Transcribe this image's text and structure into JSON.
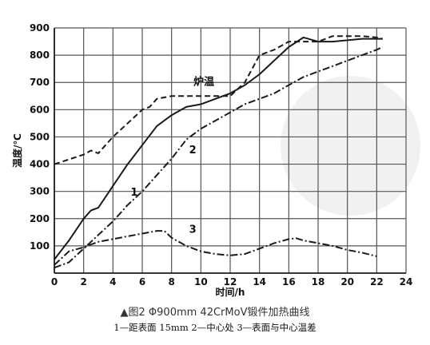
{
  "chart_data": {
    "type": "line",
    "xlabel": "时间/h",
    "ylabel": "温度/℃",
    "xlim": [
      0,
      24
    ],
    "ylim": [
      0,
      900
    ],
    "x_ticks": [
      0,
      2,
      4,
      6,
      8,
      10,
      12,
      14,
      16,
      18,
      20,
      22,
      24
    ],
    "y_ticks": [
      100,
      200,
      300,
      400,
      500,
      600,
      700,
      800,
      900
    ],
    "grid": true,
    "series": [
      {
        "name": "炉温",
        "style": "dashed",
        "x": [
          0,
          2,
          2.5,
          3,
          4,
          5,
          6,
          6.5,
          7,
          8,
          10,
          12,
          13,
          14,
          15,
          16,
          17,
          18,
          19,
          20,
          21,
          22,
          22.4
        ],
        "y": [
          400,
          435,
          450,
          440,
          500,
          550,
          600,
          610,
          640,
          650,
          650,
          650,
          700,
          800,
          820,
          850,
          850,
          850,
          870,
          870,
          870,
          865,
          860
        ]
      },
      {
        "name": "1",
        "style": "solid",
        "x": [
          0,
          1,
          2,
          2.5,
          3,
          4,
          5,
          6,
          7,
          8,
          9,
          10,
          11,
          12,
          13,
          14,
          15,
          16,
          17,
          18,
          19,
          20,
          21,
          22,
          22.4
        ],
        "y": [
          50,
          120,
          200,
          230,
          240,
          320,
          400,
          470,
          540,
          580,
          610,
          620,
          640,
          660,
          690,
          730,
          780,
          830,
          865,
          850,
          850,
          855,
          860,
          860,
          860
        ]
      },
      {
        "name": "2",
        "style": "dash-dot",
        "x": [
          0,
          1,
          2,
          3,
          4,
          5,
          6,
          7,
          8,
          9,
          10,
          11,
          12,
          13,
          14,
          15,
          16,
          17,
          18,
          19,
          20,
          21,
          22,
          22.4
        ],
        "y": [
          20,
          40,
          90,
          140,
          190,
          250,
          300,
          360,
          420,
          490,
          530,
          560,
          590,
          620,
          640,
          660,
          690,
          720,
          740,
          760,
          780,
          800,
          820,
          830
        ]
      },
      {
        "name": "3",
        "style": "dash-dot",
        "x": [
          0,
          1,
          2,
          3,
          4,
          5,
          6,
          7,
          7.5,
          8,
          9,
          10,
          11,
          12,
          13,
          14,
          15,
          16,
          16.5,
          17,
          18,
          19,
          20,
          21,
          22
        ],
        "y": [
          30,
          80,
          95,
          115,
          125,
          135,
          145,
          155,
          155,
          130,
          100,
          80,
          70,
          65,
          70,
          90,
          110,
          125,
          128,
          120,
          110,
          100,
          85,
          75,
          62
        ]
      }
    ],
    "annotations": [
      {
        "text": "炉温",
        "x": 9.5,
        "y": 690,
        "series": "炉温"
      },
      {
        "text": "1",
        "x": 5.2,
        "y": 285,
        "series": "1"
      },
      {
        "text": "2",
        "x": 9.2,
        "y": 440,
        "series": "2"
      },
      {
        "text": "3",
        "x": 9.2,
        "y": 148,
        "series": "3"
      }
    ],
    "colors": {
      "line": "#1a1a1a",
      "grid": "#555555",
      "watermark": "#eeeeee"
    }
  },
  "captions": {
    "title": "▲图2 Φ900mm 42CrMoV锻件加热曲线",
    "legend": "1—距表面 15mm   2—中心处   3—表面与中心温差"
  }
}
